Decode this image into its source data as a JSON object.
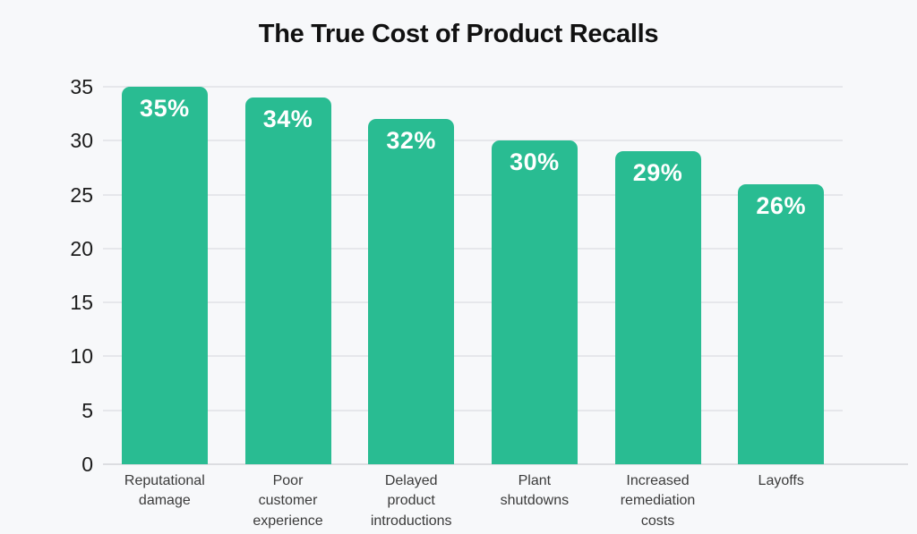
{
  "title": "The True Cost of Product Recalls",
  "colors": {
    "background": "#F7F8FA",
    "bar": "#29BC92",
    "gridline": "#E6E7EB",
    "baseline": "#DCDDE1",
    "title_text": "#111111",
    "y_tick_text": "#1B1B1B",
    "x_tick_text": "#3B3B3B",
    "bar_label_text": "#FFFFFF"
  },
  "chart_data": {
    "type": "bar",
    "title": "The True Cost of Product Recalls",
    "categories": [
      "Reputational damage",
      "Poor customer experience",
      "Delayed product introductions",
      "Plant shutdowns",
      "Increased remediation costs",
      "Layoffs"
    ],
    "categories_wrapped": [
      "Reputational\ndamage",
      "Poor\ncustomer\nexperience",
      "Delayed\nproduct\nintroductions",
      "Plant\nshutdowns",
      "Increased\nremediation\ncosts",
      "Layoffs"
    ],
    "values": [
      35,
      34,
      32,
      30,
      29,
      26
    ],
    "value_labels": [
      "35%",
      "34%",
      "32%",
      "30%",
      "29%",
      "26%"
    ],
    "unit": "%",
    "xlabel": "",
    "ylabel": "",
    "ylim": [
      0,
      35
    ],
    "yticks": [
      0,
      5,
      10,
      15,
      20,
      25,
      30,
      35
    ],
    "grid": "horizontal",
    "legend": "none",
    "bar_corner_radius_px": 9
  }
}
